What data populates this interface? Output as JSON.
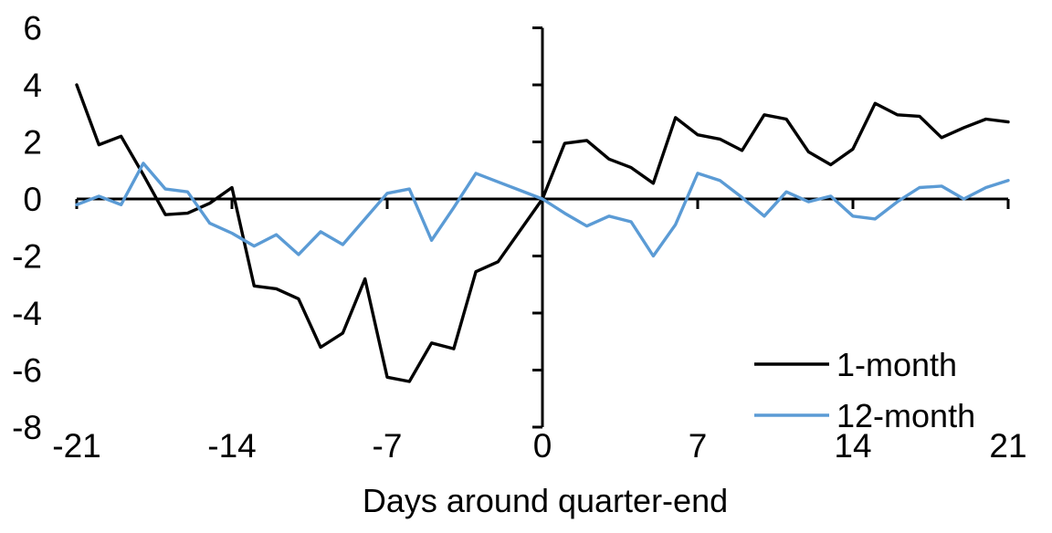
{
  "chart_data": {
    "type": "line",
    "title": "",
    "xlabel": "Days around quarter-end",
    "ylabel": "",
    "xlim": [
      -21,
      21
    ],
    "ylim": [
      -8,
      6
    ],
    "x_ticks": [
      -21,
      -14,
      -7,
      0,
      7,
      14,
      21
    ],
    "y_ticks": [
      6,
      4,
      2,
      0,
      -2,
      -4,
      -6,
      -8
    ],
    "grid": false,
    "legend_position": "lower-right",
    "axis_color": "#000000",
    "background": "#ffffff",
    "x": [
      -21,
      -20,
      -19,
      -18,
      -17,
      -16,
      -15,
      -14,
      -13,
      -12,
      -11,
      -10,
      -9,
      -8,
      -7,
      -6,
      -5,
      -4,
      -3,
      -2,
      -1,
      0,
      1,
      2,
      3,
      4,
      5,
      6,
      7,
      8,
      9,
      10,
      11,
      12,
      13,
      14,
      15,
      16,
      17,
      18,
      19,
      20,
      21
    ],
    "series": [
      {
        "name": "1-month",
        "color": "#000000",
        "values": [
          4.0,
          1.9,
          2.2,
          0.85,
          -0.55,
          -0.5,
          -0.15,
          0.4,
          -3.05,
          -3.15,
          -3.5,
          -5.2,
          -4.7,
          -2.8,
          -6.25,
          -6.4,
          -5.05,
          -5.25,
          -2.55,
          -2.2,
          -1.1,
          0.0,
          1.95,
          2.05,
          1.4,
          1.1,
          0.55,
          2.85,
          2.25,
          2.1,
          1.7,
          2.95,
          2.8,
          1.65,
          1.2,
          1.75,
          3.35,
          2.95,
          2.9,
          2.15,
          2.5,
          2.8,
          2.7
        ]
      },
      {
        "name": "12-month",
        "color": "#5B9BD5",
        "values": [
          -0.2,
          0.1,
          -0.2,
          1.25,
          0.35,
          0.25,
          -0.85,
          -1.2,
          -1.65,
          -1.25,
          -1.95,
          -1.15,
          -1.6,
          -0.7,
          0.2,
          0.35,
          -1.45,
          -0.3,
          0.9,
          0.6,
          0.3,
          0.0,
          -0.5,
          -0.95,
          -0.6,
          -0.8,
          -2.0,
          -0.9,
          0.9,
          0.65,
          0.05,
          -0.6,
          0.25,
          -0.1,
          0.1,
          -0.6,
          -0.7,
          -0.1,
          0.4,
          0.45,
          0.0,
          0.4,
          0.65
        ]
      }
    ]
  }
}
